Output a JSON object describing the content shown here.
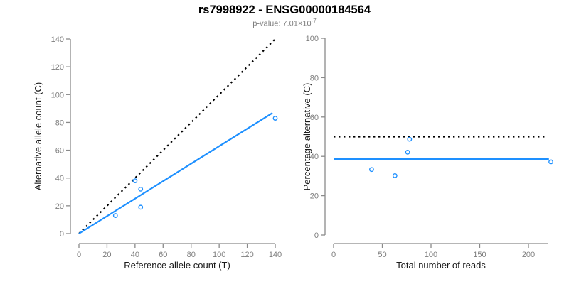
{
  "title": "rs7998922 - ENSG00000184564",
  "subtitle": {
    "prefix": "p-value: 7.01×10",
    "exponent": "-7"
  },
  "colors": {
    "accent_blue": "#1E90FF",
    "dotted_black": "#000000",
    "axis_gray": "#8a8a8a",
    "tick_label_gray": "#7d7d7d",
    "text_black": "#1a1a1a"
  },
  "chart_data": [
    {
      "type": "scatter",
      "panel": "allele-counts",
      "xlabel": "Reference allele count (T)",
      "ylabel": "Alternative allele count (C)",
      "xlim": [
        0,
        140
      ],
      "ylim": [
        0,
        140
      ],
      "xticks": [
        0,
        20,
        40,
        60,
        80,
        100,
        120,
        140
      ],
      "yticks": [
        0,
        20,
        40,
        60,
        80,
        100,
        120,
        140
      ],
      "grid": false,
      "legend": null,
      "points": [
        [
          26,
          13
        ],
        [
          40,
          38
        ],
        [
          44,
          32
        ],
        [
          44,
          19
        ],
        [
          140,
          83
        ]
      ],
      "lines": [
        {
          "name": "expected-50pct-line",
          "style": "dotted",
          "color": "#000000",
          "from": [
            0,
            0
          ],
          "to": [
            140,
            140
          ]
        },
        {
          "name": "fitted-ratio-line",
          "style": "solid",
          "color": "#1E90FF",
          "from": [
            0,
            0
          ],
          "to": [
            138,
            86.8
          ]
        }
      ]
    },
    {
      "type": "scatter",
      "panel": "percentage-vs-reads",
      "xlabel": "Total number of reads",
      "ylabel": "Percentage alternative (C)",
      "xlim": [
        0,
        225
      ],
      "ylim": [
        0,
        100
      ],
      "xticks": [
        0,
        50,
        100,
        150,
        200
      ],
      "yticks": [
        0,
        20,
        40,
        60,
        80,
        100
      ],
      "grid": false,
      "legend": null,
      "points": [
        [
          39,
          33.3
        ],
        [
          78,
          48.7
        ],
        [
          76,
          42.1
        ],
        [
          63,
          30.2
        ],
        [
          223,
          37.2
        ]
      ],
      "lines": [
        {
          "name": "null-50pct-line",
          "style": "dotted",
          "color": "#000000",
          "from": [
            0,
            50
          ],
          "to": [
            218,
            50
          ]
        },
        {
          "name": "mean-alt-pct-line",
          "style": "solid",
          "color": "#1E90FF",
          "from": [
            0,
            38.6
          ],
          "to": [
            221,
            38.6
          ]
        }
      ]
    }
  ]
}
